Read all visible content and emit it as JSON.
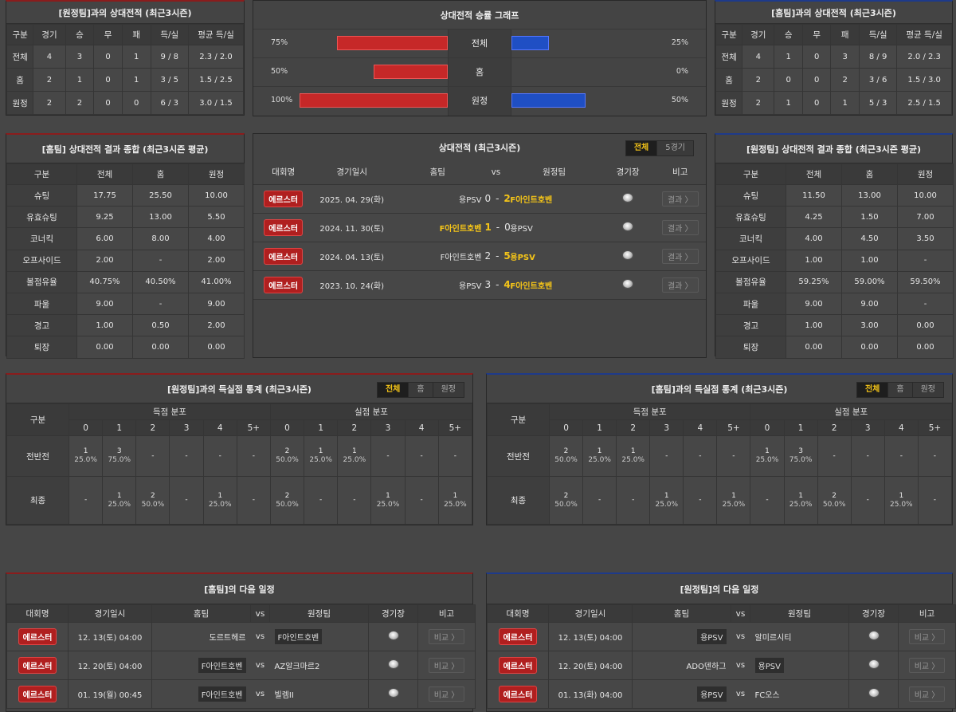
{
  "tl_panel": {
    "title": "[원정팀]과의 상대전적 (최근3시즌)",
    "headers": [
      "구분",
      "경기",
      "승",
      "무",
      "패",
      "득/실",
      "평균 득/실"
    ],
    "rows": [
      [
        "전체",
        "4",
        "3",
        "0",
        "1",
        "9 / 8",
        "2.3 / 2.0"
      ],
      [
        "홈",
        "2",
        "1",
        "0",
        "1",
        "3 / 5",
        "1.5 / 2.5"
      ],
      [
        "원정",
        "2",
        "2",
        "0",
        "0",
        "6 / 3",
        "3.0 / 1.5"
      ]
    ]
  },
  "graph": {
    "title": "상대전적 승률 그래프",
    "rows": [
      {
        "cat": "전체",
        "left": "75%",
        "right": "25%",
        "lv": 75,
        "rv": 25
      },
      {
        "cat": "홈",
        "left": "50%",
        "right": "0%",
        "lv": 50,
        "rv": 0
      },
      {
        "cat": "원정",
        "left": "100%",
        "right": "50%",
        "lv": 100,
        "rv": 50
      }
    ],
    "left_color": "#c62828",
    "right_color": "#1f4fc4"
  },
  "tr_panel": {
    "title": "[홈팀]과의 상대전적 (최근3시즌)",
    "headers": [
      "구분",
      "경기",
      "승",
      "무",
      "패",
      "득/실",
      "평균 득/실"
    ],
    "rows": [
      [
        "전체",
        "4",
        "1",
        "0",
        "3",
        "8 / 9",
        "2.0 / 2.3"
      ],
      [
        "홈",
        "2",
        "0",
        "0",
        "2",
        "3 / 6",
        "1.5 / 3.0"
      ],
      [
        "원정",
        "2",
        "1",
        "0",
        "1",
        "5 / 3",
        "2.5 / 1.5"
      ]
    ]
  },
  "ml_panel": {
    "title": "[홈팀] 상대전적 결과 종합 (최근3시즌 평균)",
    "headers": [
      "구분",
      "전체",
      "홈",
      "원정"
    ],
    "rows": [
      [
        "슈팅",
        "17.75",
        "25.50",
        "10.00"
      ],
      [
        "유효슈팅",
        "9.25",
        "13.00",
        "5.50"
      ],
      [
        "코너킥",
        "6.00",
        "8.00",
        "4.00"
      ],
      [
        "오프사이드",
        "2.00",
        "-",
        "2.00"
      ],
      [
        "볼점유율",
        "40.75%",
        "40.50%",
        "41.00%"
      ],
      [
        "파울",
        "9.00",
        "-",
        "9.00"
      ],
      [
        "경고",
        "1.00",
        "0.50",
        "2.00"
      ],
      [
        "퇴장",
        "0.00",
        "0.00",
        "0.00"
      ]
    ]
  },
  "mc_panel": {
    "title": "상대전적 (최근3시즌)",
    "tabs": [
      "전체",
      "5경기"
    ],
    "headers": [
      "대회명",
      "경기일시",
      "홈팀",
      "vs",
      "원정팀",
      "경기장",
      "비고"
    ],
    "matches": [
      {
        "league": "에르스터",
        "date": "2025. 04. 29(화)",
        "home": "용PSV",
        "hs": "0",
        "sep": "-",
        "as": "2",
        "away": "F아인트호벤",
        "btn": "결과 〉"
      },
      {
        "league": "에르스터",
        "date": "2024. 11. 30(토)",
        "home": "F아인트호벤",
        "hs": "1",
        "sep": "-",
        "as": "0",
        "away": "용PSV",
        "btn": "결과 〉"
      },
      {
        "league": "에르스터",
        "date": "2024. 04. 13(토)",
        "home": "F아인트호벤",
        "hs": "2",
        "sep": "-",
        "as": "5",
        "away": "용PSV",
        "btn": "결과 〉"
      },
      {
        "league": "에르스터",
        "date": "2023. 10. 24(화)",
        "home": "용PSV",
        "hs": "3",
        "sep": "-",
        "as": "4",
        "away": "F아인트호벤",
        "btn": "결과 〉"
      }
    ]
  },
  "mr_panel": {
    "title": "[원정팀] 상대전적 결과 종합 (최근3시즌 평균)",
    "headers": [
      "구분",
      "전체",
      "홈",
      "원정"
    ],
    "rows": [
      [
        "슈팅",
        "11.50",
        "13.00",
        "10.00"
      ],
      [
        "유효슈팅",
        "4.25",
        "1.50",
        "7.00"
      ],
      [
        "코너킥",
        "4.00",
        "4.50",
        "3.50"
      ],
      [
        "오프사이드",
        "1.00",
        "1.00",
        "-"
      ],
      [
        "볼점유율",
        "59.25%",
        "59.00%",
        "59.50%"
      ],
      [
        "파울",
        "9.00",
        "9.00",
        "-"
      ],
      [
        "경고",
        "1.00",
        "3.00",
        "0.00"
      ],
      [
        "퇴장",
        "0.00",
        "0.00",
        "0.00"
      ]
    ]
  },
  "gl_panel": {
    "title": "[원정팀]과의 득실점 통계 (최근3시즌)",
    "tabs": [
      "전체",
      "홈",
      "원정"
    ],
    "h_label": "구분",
    "h_scored": "득점 분포",
    "h_conceded": "실점 분포",
    "cols": [
      "0",
      "1",
      "2",
      "3",
      "4",
      "5+",
      "0",
      "1",
      "2",
      "3",
      "4",
      "5+"
    ],
    "rows": [
      {
        "label": "전반전",
        "cells": [
          [
            "1",
            "25.0%"
          ],
          [
            "3",
            "75.0%"
          ],
          [
            "-",
            ""
          ],
          [
            "-",
            ""
          ],
          [
            "-",
            ""
          ],
          [
            "-",
            ""
          ],
          [
            "2",
            "50.0%"
          ],
          [
            "1",
            "25.0%"
          ],
          [
            "1",
            "25.0%"
          ],
          [
            "-",
            ""
          ],
          [
            "-",
            ""
          ],
          [
            "-",
            ""
          ]
        ]
      },
      {
        "label": "최종",
        "cells": [
          [
            "-",
            ""
          ],
          [
            "1",
            "25.0%"
          ],
          [
            "2",
            "50.0%"
          ],
          [
            "-",
            ""
          ],
          [
            "1",
            "25.0%"
          ],
          [
            "-",
            ""
          ],
          [
            "2",
            "50.0%"
          ],
          [
            "-",
            ""
          ],
          [
            "-",
            ""
          ],
          [
            "1",
            "25.0%"
          ],
          [
            "-",
            ""
          ],
          [
            "1",
            "25.0%"
          ]
        ]
      }
    ]
  },
  "gr_panel": {
    "title": "[홈팀]과의 득실점 통계 (최근3시즌)",
    "tabs": [
      "전체",
      "홈",
      "원정"
    ],
    "h_label": "구분",
    "h_scored": "득점 분포",
    "h_conceded": "실점 분포",
    "cols": [
      "0",
      "1",
      "2",
      "3",
      "4",
      "5+",
      "0",
      "1",
      "2",
      "3",
      "4",
      "5+"
    ],
    "rows": [
      {
        "label": "전반전",
        "cells": [
          [
            "2",
            "50.0%"
          ],
          [
            "1",
            "25.0%"
          ],
          [
            "1",
            "25.0%"
          ],
          [
            "-",
            ""
          ],
          [
            "-",
            ""
          ],
          [
            "-",
            ""
          ],
          [
            "1",
            "25.0%"
          ],
          [
            "3",
            "75.0%"
          ],
          [
            "-",
            ""
          ],
          [
            "-",
            ""
          ],
          [
            "-",
            ""
          ],
          [
            "-",
            ""
          ]
        ]
      },
      {
        "label": "최종",
        "cells": [
          [
            "2",
            "50.0%"
          ],
          [
            "-",
            ""
          ],
          [
            "-",
            ""
          ],
          [
            "1",
            "25.0%"
          ],
          [
            "-",
            ""
          ],
          [
            "1",
            "25.0%"
          ],
          [
            "-",
            ""
          ],
          [
            "1",
            "25.0%"
          ],
          [
            "2",
            "50.0%"
          ],
          [
            "-",
            ""
          ],
          [
            "1",
            "25.0%"
          ],
          [
            "-",
            ""
          ]
        ]
      }
    ]
  },
  "bl_panel": {
    "title": "[홈팀]의 다음 일정",
    "headers": [
      "대회명",
      "경기일시",
      "홈팀",
      "vs",
      "원정팀",
      "경기장",
      "비고"
    ],
    "matches": [
      {
        "league": "에르스터",
        "date": "12. 13(토) 04:00",
        "home": "도르트헤르",
        "vs": "vs",
        "away": "F아인트호벤",
        "btn": "비교 〉",
        "hl": "away"
      },
      {
        "league": "에르스터",
        "date": "12. 20(토) 04:00",
        "home": "F아인트호벤",
        "vs": "vs",
        "away": "AZ알크마르2",
        "btn": "비교 〉",
        "hl": "home"
      },
      {
        "league": "에르스터",
        "date": "01. 19(월) 00:45",
        "home": "F아인트호벤",
        "vs": "vs",
        "away": "빌렘II",
        "btn": "비교 〉",
        "hl": "home"
      }
    ]
  },
  "br_panel": {
    "title": "[원정팀]의 다음 일정",
    "headers": [
      "대회명",
      "경기일시",
      "홈팀",
      "vs",
      "원정팀",
      "경기장",
      "비고"
    ],
    "matches": [
      {
        "league": "에르스터",
        "date": "12. 13(토) 04:00",
        "home": "용PSV",
        "vs": "vs",
        "away": "알미르시티",
        "btn": "비교 〉",
        "hl": "home"
      },
      {
        "league": "에르스터",
        "date": "12. 20(토) 04:00",
        "home": "ADO덴하그",
        "vs": "vs",
        "away": "용PSV",
        "btn": "비교 〉",
        "hl": "away"
      },
      {
        "league": "에르스터",
        "date": "01. 13(화) 04:00",
        "home": "용PSV",
        "vs": "vs",
        "away": "FC오스",
        "btn": "비교 〉",
        "hl": "home"
      }
    ]
  }
}
